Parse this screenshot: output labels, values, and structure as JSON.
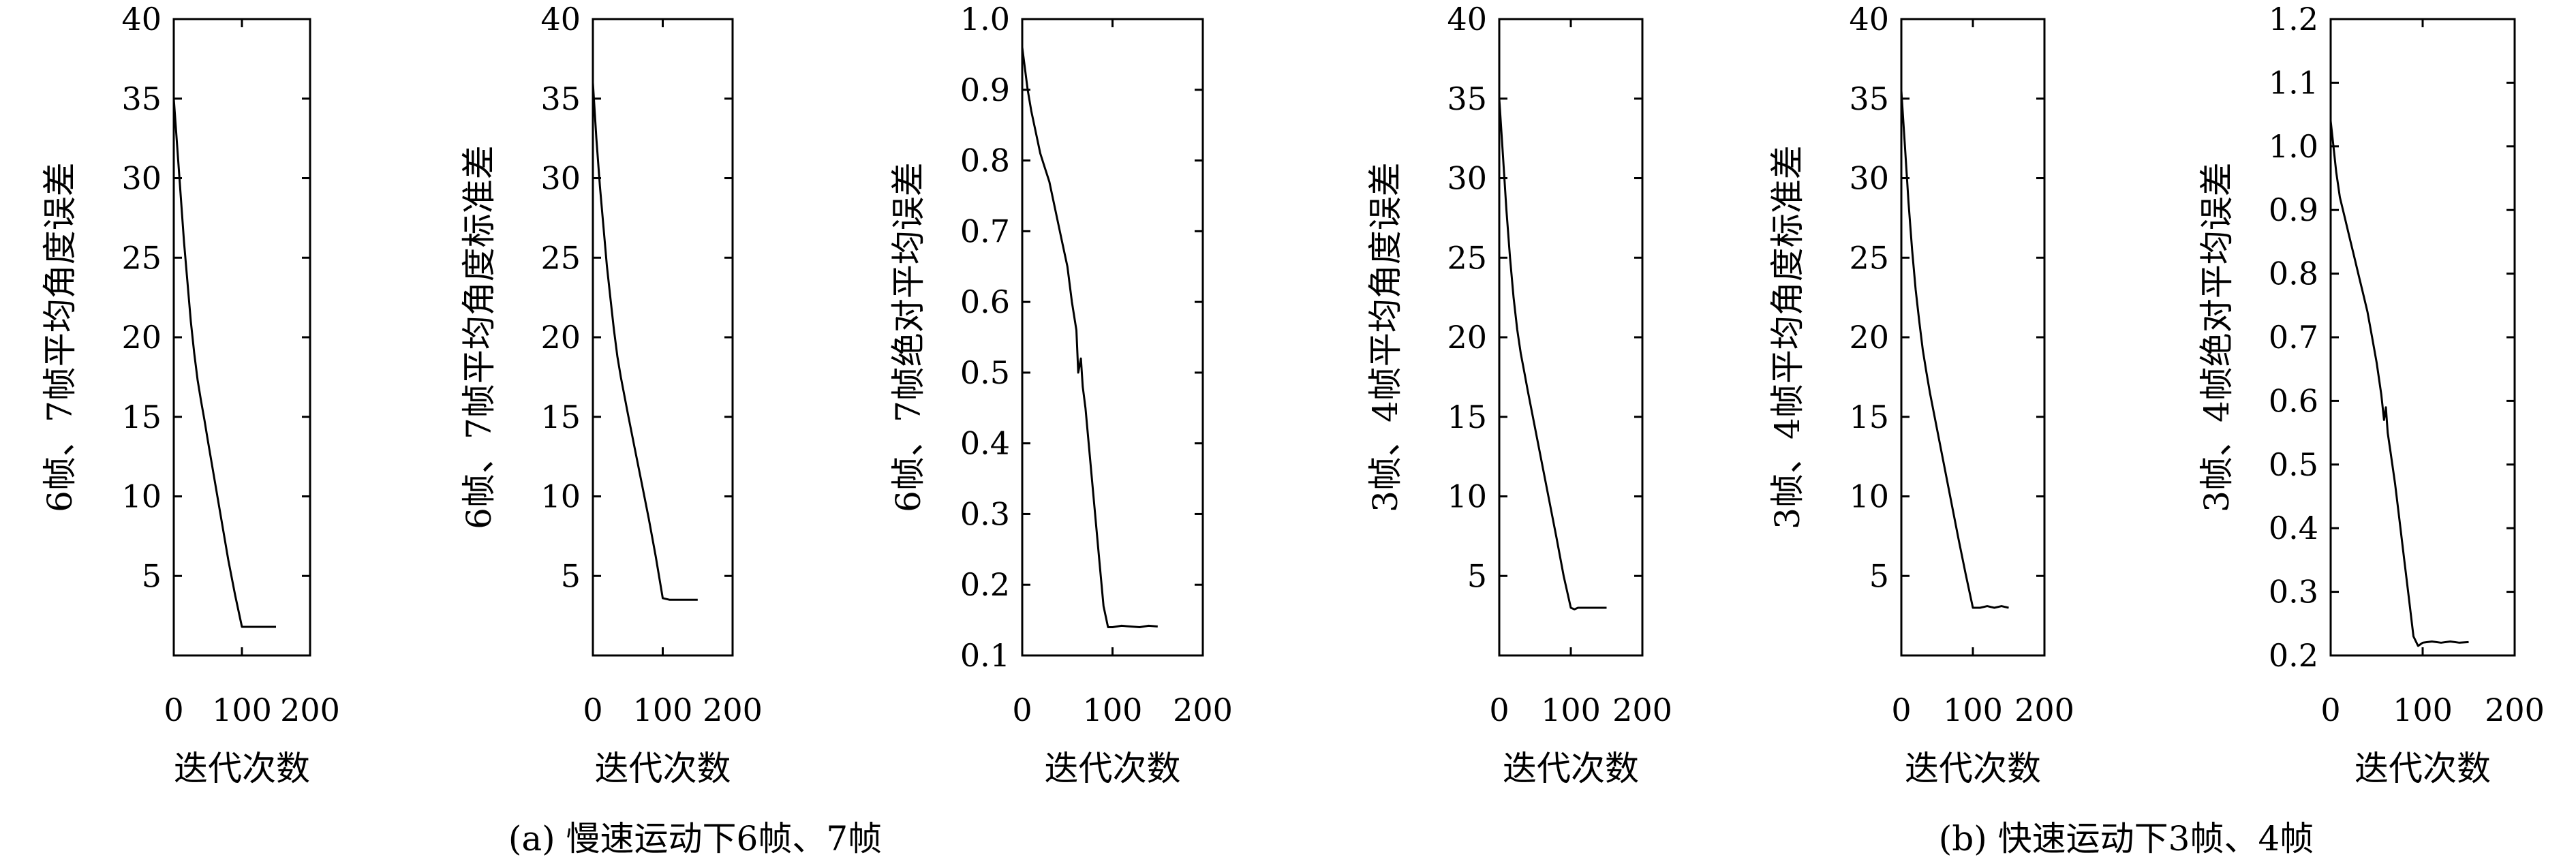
{
  "figure": {
    "caption_a": "(a) 慢速运动下6帧、7帧",
    "caption_b": "(b) 快速运动下3帧、4帧"
  },
  "chart_data": [
    {
      "type": "line",
      "ylabel": "6帧、7帧平均角度误差",
      "xlabel": "迭代次数",
      "xlim": [
        0,
        200
      ],
      "ylim": [
        0,
        40
      ],
      "xticks": [
        0,
        100,
        200
      ],
      "yticks": [
        5,
        10,
        15,
        20,
        25,
        30,
        35,
        40
      ],
      "ytick_labels": [
        "5",
        "10",
        "15",
        "20",
        "25",
        "30",
        "35",
        "40"
      ],
      "grid": false,
      "series": [
        {
          "x": [
            0,
            5,
            10,
            15,
            20,
            25,
            30,
            35,
            40,
            45,
            50,
            60,
            70,
            80,
            90,
            100,
            110,
            120,
            130,
            140,
            150
          ],
          "y": [
            35,
            32,
            29,
            26,
            23.5,
            21,
            19,
            17.3,
            16,
            14.8,
            13.5,
            11,
            8.5,
            6,
            3.8,
            1.8,
            1.8,
            1.8,
            1.8,
            1.8,
            1.8
          ]
        }
      ]
    },
    {
      "type": "line",
      "ylabel": "6帧、7帧平均角度标准差",
      "xlabel": "迭代次数",
      "xlim": [
        0,
        200
      ],
      "ylim": [
        0,
        40
      ],
      "xticks": [
        0,
        100,
        200
      ],
      "yticks": [
        5,
        10,
        15,
        20,
        25,
        30,
        35,
        40
      ],
      "ytick_labels": [
        "5",
        "10",
        "15",
        "20",
        "25",
        "30",
        "35",
        "40"
      ],
      "grid": false,
      "series": [
        {
          "x": [
            0,
            5,
            10,
            15,
            20,
            25,
            30,
            35,
            40,
            50,
            60,
            70,
            80,
            90,
            100,
            110,
            120,
            130,
            140,
            150
          ],
          "y": [
            36,
            32.5,
            29.5,
            27,
            24.5,
            22.5,
            20.5,
            18.8,
            17.5,
            15.2,
            13,
            10.8,
            8.6,
            6.2,
            3.6,
            3.5,
            3.5,
            3.5,
            3.5,
            3.5
          ]
        }
      ]
    },
    {
      "type": "line",
      "ylabel": "6帧、7帧绝对平均误差",
      "xlabel": "迭代次数",
      "xlim": [
        0,
        200
      ],
      "ylim": [
        0.1,
        1.0
      ],
      "xticks": [
        0,
        100,
        200
      ],
      "yticks": [
        0.1,
        0.2,
        0.3,
        0.4,
        0.5,
        0.6,
        0.7,
        0.8,
        0.9,
        1.0
      ],
      "ytick_labels": [
        "0.1",
        "0.2",
        "0.3",
        "0.4",
        "0.5",
        "0.6",
        "0.7",
        "0.8",
        "0.9",
        "1.0"
      ],
      "grid": false,
      "series": [
        {
          "x": [
            0,
            3,
            6,
            10,
            15,
            20,
            25,
            30,
            35,
            40,
            45,
            50,
            55,
            60,
            62,
            65,
            67,
            70,
            75,
            80,
            85,
            90,
            95,
            100,
            110,
            120,
            130,
            140,
            150
          ],
          "y": [
            0.96,
            0.93,
            0.9,
            0.87,
            0.84,
            0.81,
            0.79,
            0.77,
            0.74,
            0.71,
            0.68,
            0.65,
            0.6,
            0.56,
            0.5,
            0.52,
            0.48,
            0.45,
            0.38,
            0.31,
            0.24,
            0.17,
            0.14,
            0.14,
            0.142,
            0.141,
            0.14,
            0.142,
            0.141
          ]
        }
      ]
    },
    {
      "type": "line",
      "ylabel": "3帧、4帧平均角度误差",
      "xlabel": "迭代次数",
      "xlim": [
        0,
        200
      ],
      "ylim": [
        0,
        40
      ],
      "xticks": [
        0,
        100,
        200
      ],
      "yticks": [
        5,
        10,
        15,
        20,
        25,
        30,
        35,
        40
      ],
      "ytick_labels": [
        "5",
        "10",
        "15",
        "20",
        "25",
        "30",
        "35",
        "40"
      ],
      "grid": false,
      "series": [
        {
          "x": [
            0,
            5,
            10,
            15,
            20,
            25,
            30,
            35,
            40,
            50,
            60,
            70,
            80,
            90,
            100,
            105,
            110,
            120,
            130,
            140,
            150
          ],
          "y": [
            35,
            31.5,
            28,
            25,
            22.5,
            20.5,
            19,
            17.8,
            16.6,
            14.3,
            12,
            9.7,
            7.4,
            5,
            3,
            2.9,
            3,
            3,
            3,
            3,
            3
          ]
        }
      ]
    },
    {
      "type": "line",
      "ylabel": "3帧、4帧平均角度标准差",
      "xlabel": "迭代次数",
      "xlim": [
        0,
        200
      ],
      "ylim": [
        0,
        40
      ],
      "xticks": [
        0,
        100,
        200
      ],
      "yticks": [
        5,
        10,
        15,
        20,
        25,
        30,
        35,
        40
      ],
      "ytick_labels": [
        "5",
        "10",
        "15",
        "20",
        "25",
        "30",
        "35",
        "40"
      ],
      "grid": false,
      "series": [
        {
          "x": [
            0,
            5,
            10,
            15,
            20,
            25,
            30,
            35,
            40,
            50,
            60,
            70,
            80,
            90,
            100,
            110,
            120,
            130,
            140,
            150
          ],
          "y": [
            35.5,
            32,
            28.5,
            25.5,
            23,
            21,
            19.2,
            17.8,
            16.5,
            14.2,
            11.9,
            9.6,
            7.3,
            5.1,
            3,
            3,
            3.1,
            3,
            3.1,
            3
          ]
        }
      ]
    },
    {
      "type": "line",
      "ylabel": "3帧、4帧绝对平均误差",
      "xlabel": "迭代次数",
      "xlim": [
        0,
        200
      ],
      "ylim": [
        0.2,
        1.2
      ],
      "xticks": [
        0,
        100,
        200
      ],
      "yticks": [
        0.2,
        0.3,
        0.4,
        0.5,
        0.6,
        0.7,
        0.8,
        0.9,
        1.0,
        1.1,
        1.2
      ],
      "ytick_labels": [
        "0.2",
        "0.3",
        "0.4",
        "0.5",
        "0.6",
        "0.7",
        "0.8",
        "0.9",
        "1.0",
        "1.1",
        "1.2"
      ],
      "grid": false,
      "series": [
        {
          "x": [
            0,
            3,
            6,
            10,
            15,
            20,
            25,
            30,
            35,
            40,
            45,
            50,
            55,
            58,
            60,
            62,
            65,
            70,
            75,
            80,
            85,
            90,
            95,
            100,
            110,
            120,
            130,
            140,
            150
          ],
          "y": [
            1.04,
            1.0,
            0.96,
            0.92,
            0.89,
            0.86,
            0.83,
            0.8,
            0.77,
            0.74,
            0.7,
            0.66,
            0.61,
            0.57,
            0.59,
            0.55,
            0.52,
            0.47,
            0.41,
            0.35,
            0.29,
            0.23,
            0.215,
            0.22,
            0.222,
            0.22,
            0.222,
            0.22,
            0.221
          ]
        }
      ]
    }
  ]
}
